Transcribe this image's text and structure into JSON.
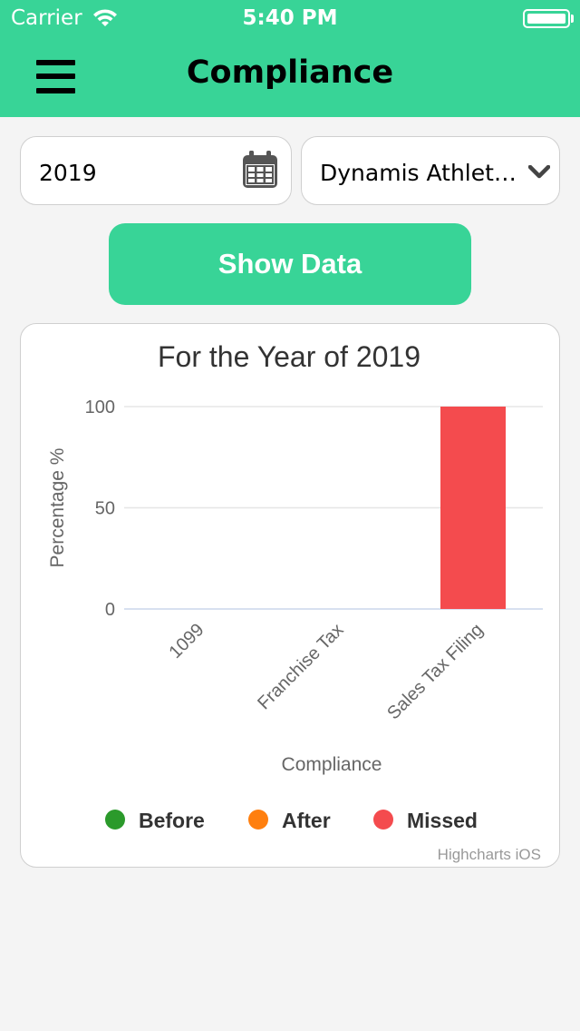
{
  "status_bar": {
    "carrier": "Carrier",
    "time": "5:40 PM"
  },
  "header": {
    "title": "Compliance",
    "background": "#38d497"
  },
  "filters": {
    "year": "2019",
    "company": "Dynamis Athletics",
    "show_button": "Show Data"
  },
  "chart_data": {
    "type": "bar",
    "title": "For the Year of 2019",
    "xlabel": "Compliance",
    "ylabel": "Percentage %",
    "categories": [
      "1099",
      "Franchise Tax",
      "Sales Tax Filing"
    ],
    "yticks": [
      0,
      50,
      100
    ],
    "ylim": [
      0,
      100
    ],
    "grid": true,
    "legend_position": "bottom",
    "series": [
      {
        "name": "Before",
        "color": "#2b9a2b",
        "values": [
          0,
          0,
          0
        ]
      },
      {
        "name": "After",
        "color": "#ff7f0e",
        "values": [
          0,
          0,
          0
        ]
      },
      {
        "name": "Missed",
        "color": "#f44b4e",
        "values": [
          0,
          0,
          100
        ]
      }
    ],
    "credits": "Highcharts iOS"
  }
}
